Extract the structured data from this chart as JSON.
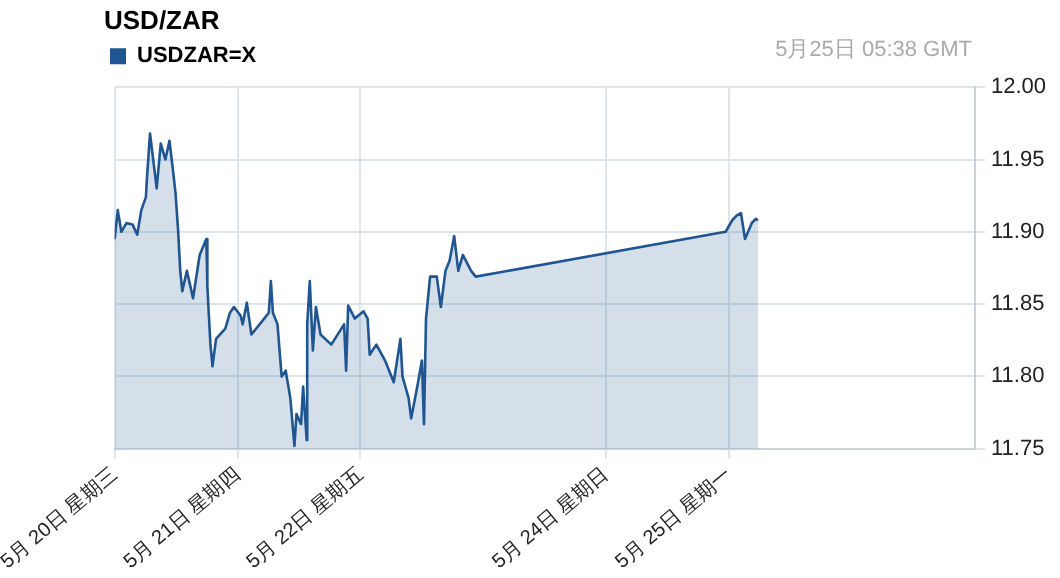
{
  "chart_data": {
    "type": "area",
    "title": "USD/ZAR",
    "annotations": [
      "5月25日 05:38 GMT"
    ],
    "x": [
      "--05-20T00:00",
      "--05-20T00:36",
      "--05-20T01:18",
      "--05-20T02:18",
      "--05-20T03:30",
      "--05-20T04:24",
      "--05-20T05:12",
      "--05-20T06:06",
      "--05-20T06:18",
      "--05-20T06:54",
      "--05-20T07:48",
      "--05-20T08:12",
      "--05-20T09:00",
      "--05-20T09:54",
      "--05-20T10:42",
      "--05-20T11:30",
      "--05-20T11:54",
      "--05-20T12:24",
      "--05-20T12:48",
      "--05-20T13:12",
      "--05-20T14:06",
      "--05-20T15:18",
      "--05-20T16:36",
      "--05-20T17:54",
      "--05-20T18:06",
      "--05-20T18:42",
      "--05-20T19:06",
      "--05-20T19:48",
      "--05-20T21:36",
      "--05-20T22:30",
      "--05-20T23:18",
      "--05-21T00:36",
      "--05-21T01:00",
      "--05-21T01:48",
      "--05-21T02:42",
      "--05-21T05:12",
      "--05-21T06:06",
      "--05-21T06:30",
      "--05-21T06:54",
      "--05-21T07:48",
      "--05-21T08:36",
      "--05-21T09:24",
      "--05-21T10:18",
      "--05-21T11:06",
      "--05-21T11:30",
      "--05-21T12:24",
      "--05-21T12:48",
      "--05-21T13:30",
      "--05-21T13:36",
      "--05-21T14:06",
      "--05-21T14:42",
      "--05-21T15:18",
      "--05-21T16:12",
      "--05-21T18:18",
      "--05-21T20:48",
      "--05-21T21:12",
      "--05-21T21:36",
      "--05-21T22:54",
      "--05-22T00:36",
      "--05-22T01:24",
      "--05-22T01:48",
      "--05-22T03:06",
      "--05-22T04:48",
      "--05-22T06:30",
      "--05-22T07:48",
      "--05-22T08:12",
      "--05-22T09:24",
      "--05-22T09:54",
      "--05-22T11:06",
      "--05-22T12:00",
      "--05-22T12:24",
      "--05-22T12:48",
      "--05-22T13:36",
      "--05-22T14:54",
      "--05-22T15:42",
      "--05-22T16:36",
      "--05-22T17:24",
      "--05-22T18:18",
      "--05-22T19:06",
      "--05-22T20:00",
      "--05-22T21:36",
      "--05-22T22:30",
      "--05-24T12:00",
      "--05-24T23:18",
      "--05-25T00:36",
      "--05-25T01:24",
      "--05-25T02:18",
      "--05-25T03:06",
      "--05-25T04:24",
      "--05-25T05:12",
      "--05-25T05:38"
    ],
    "series": [
      {
        "name": "USDZAR=X",
        "color": "#1f5591",
        "values": [
          11.895,
          11.915,
          11.9,
          11.906,
          11.905,
          11.898,
          11.915,
          11.924,
          11.937,
          11.968,
          11.942,
          11.93,
          11.961,
          11.95,
          11.963,
          11.939,
          11.926,
          11.9,
          11.873,
          11.859,
          11.873,
          11.854,
          11.884,
          11.895,
          11.862,
          11.822,
          11.807,
          11.826,
          11.833,
          11.844,
          11.848,
          11.842,
          11.836,
          11.851,
          11.829,
          11.84,
          11.844,
          11.866,
          11.844,
          11.836,
          11.8,
          11.804,
          11.785,
          11.752,
          11.774,
          11.767,
          11.793,
          11.756,
          11.836,
          11.866,
          11.818,
          11.848,
          11.829,
          11.822,
          11.836,
          11.804,
          11.849,
          11.84,
          11.845,
          11.84,
          11.815,
          11.822,
          11.811,
          11.796,
          11.826,
          11.8,
          11.785,
          11.771,
          11.793,
          11.811,
          11.767,
          11.84,
          11.869,
          11.869,
          11.848,
          11.873,
          11.88,
          11.897,
          11.873,
          11.884,
          11.873,
          11.869,
          null,
          11.9,
          11.908,
          11.911,
          11.913,
          11.895,
          11.906,
          11.909,
          11.908
        ]
      }
    ],
    "xlim": [
      "--05-20",
      "--05-27"
    ],
    "xticks": [
      {
        "value": "--05-20",
        "label": "5月 20日 星期三"
      },
      {
        "value": "--05-21",
        "label": "5月 21日 星期四"
      },
      {
        "value": "--05-22",
        "label": "5月 22日 星期五"
      },
      {
        "value": "--05-24",
        "label": "5月 24日 星期日"
      },
      {
        "value": "--05-25",
        "label": "5月 25日 星期一"
      }
    ],
    "ylim": [
      11.75,
      12.0
    ],
    "yticks": [
      {
        "value": 11.75,
        "label": "11.75"
      },
      {
        "value": 11.8,
        "label": "11.80"
      },
      {
        "value": 11.85,
        "label": "11.85"
      },
      {
        "value": 11.9,
        "label": "11.90"
      },
      {
        "value": 11.95,
        "label": "11.95"
      },
      {
        "value": 12.0,
        "label": "12.00"
      }
    ],
    "grid": true,
    "legend": "top left",
    "line_style": "solid",
    "marker": "none"
  }
}
